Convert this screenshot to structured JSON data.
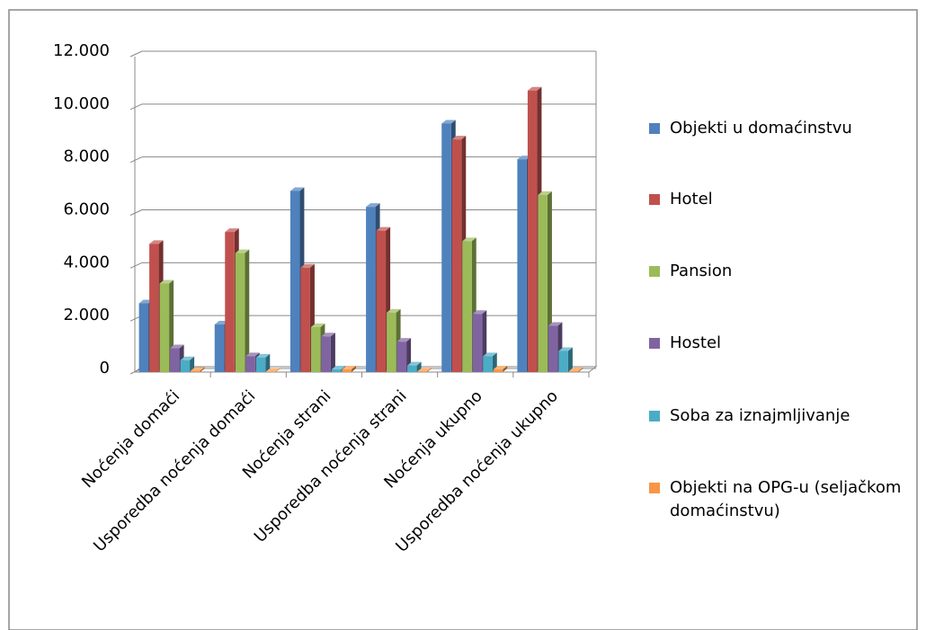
{
  "chart_data": {
    "type": "bar",
    "categories": [
      "Noćenja domaći",
      "Usporedba noćenja domaći",
      "Noćenja strani",
      "Usporedba noćenja strani",
      "Noćenja ukupno",
      "Usporedba noćenja ukupno"
    ],
    "series": [
      {
        "name": "Objekti u domaćinstvu",
        "color": "#4f81bd",
        "values": [
          2600,
          1800,
          6850,
          6250,
          9400,
          8050
        ]
      },
      {
        "name": "Hotel",
        "color": "#c0504d",
        "values": [
          4850,
          5300,
          3950,
          5350,
          8800,
          10650
        ]
      },
      {
        "name": "Pansion",
        "color": "#9bbb59",
        "values": [
          3350,
          4500,
          1700,
          2250,
          4950,
          6700
        ]
      },
      {
        "name": "Hostel",
        "color": "#8064a2",
        "values": [
          900,
          600,
          1350,
          1150,
          2200,
          1750
        ]
      },
      {
        "name": "Soba za iznajmljivanje",
        "color": "#4bacc6",
        "values": [
          450,
          550,
          100,
          250,
          600,
          800
        ]
      },
      {
        "name": "Objekti na OPG-u (seljačkom domaćinstvu)",
        "color": "#f79646",
        "values": [
          50,
          20,
          100,
          30,
          100,
          40
        ]
      }
    ],
    "ylim": [
      0,
      12000
    ],
    "yticks": [
      0,
      {
        "value": 2000,
        "label": "2.000"
      },
      {
        "value": 4000,
        "label": "4.000"
      },
      {
        "value": 6000,
        "label": "6.000"
      },
      {
        "value": 8000,
        "label": "8.000"
      },
      {
        "value": 10000,
        "label": "10.000"
      },
      {
        "value": 12000,
        "label": "12.000"
      }
    ],
    "grid": true
  }
}
